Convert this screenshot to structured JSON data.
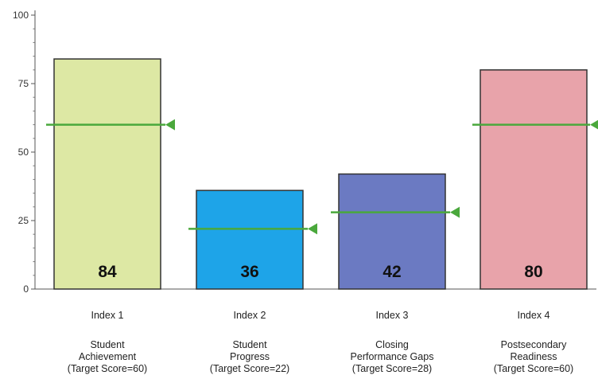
{
  "chart_data": {
    "type": "bar",
    "ylim": [
      0,
      100
    ],
    "yticks": [
      0,
      25,
      50,
      75,
      100
    ],
    "grid": false,
    "categories": [
      {
        "index": "Index 1",
        "lines": [
          "Student",
          "Achievement",
          "(Target Score=60)"
        ]
      },
      {
        "index": "Index 2",
        "lines": [
          "Student",
          "Progress",
          "(Target Score=22)"
        ]
      },
      {
        "index": "Index 3",
        "lines": [
          "Closing",
          "Performance Gaps",
          "(Target Score=28)"
        ]
      },
      {
        "index": "Index 4",
        "lines": [
          "Postsecondary",
          "Readiness",
          "(Target Score=60)"
        ]
      }
    ],
    "values": [
      84,
      36,
      42,
      80
    ],
    "value_labels": [
      "84",
      "36",
      "42",
      "80"
    ],
    "targets": [
      60,
      22,
      28,
      60
    ],
    "colors": [
      "#dde8a4",
      "#1ea4e8",
      "#6b7ac2",
      "#e8a3aa"
    ],
    "target_color": "#4aa83c"
  }
}
